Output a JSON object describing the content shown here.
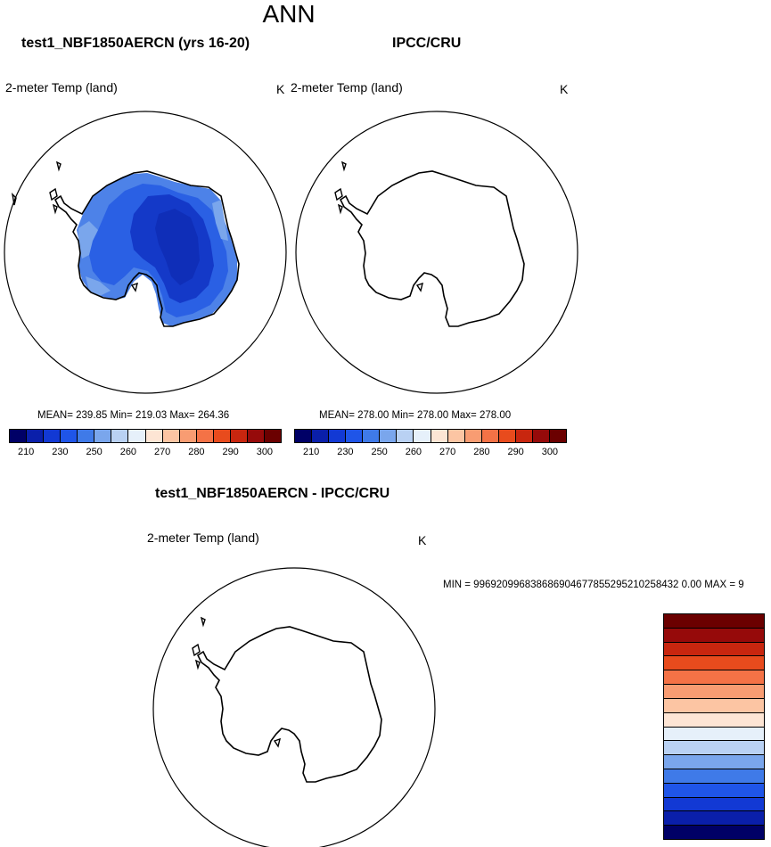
{
  "title": "ANN",
  "palette": [
    "#000066",
    "#0a1faa",
    "#1239d4",
    "#1f55e8",
    "#3f7ae8",
    "#7aa6ec",
    "#b9d1f3",
    "#e6f0fa",
    "#fde5d4",
    "#fcc5a3",
    "#f89c72",
    "#f47246",
    "#e84b1d",
    "#c8260f",
    "#960a0a",
    "#6b0000"
  ],
  "panels": {
    "model": {
      "title": "test1_NBF1850AERCN (yrs 16-20)",
      "variable": "2-meter Temp (land)",
      "units": "K",
      "stats": "MEAN= 239.85  Min= 219.03  Max= 264.36",
      "ticks": [
        "210",
        "230",
        "250",
        "260",
        "270",
        "280",
        "290",
        "300"
      ]
    },
    "obs": {
      "title": "IPCC/CRU",
      "variable": "2-meter Temp (land)",
      "units": "K",
      "stats": "MEAN= 278.00  Min= 278.00  Max= 278.00",
      "ticks": [
        "210",
        "230",
        "250",
        "260",
        "270",
        "280",
        "290",
        "300"
      ]
    },
    "diff": {
      "title": "test1_NBF1850AERCN - IPCC/CRU",
      "variable": "2-meter Temp (land)",
      "units": "K",
      "stats": "MIN = 996920996838686904677855295210258432 0.00 MAX = 9"
    }
  }
}
